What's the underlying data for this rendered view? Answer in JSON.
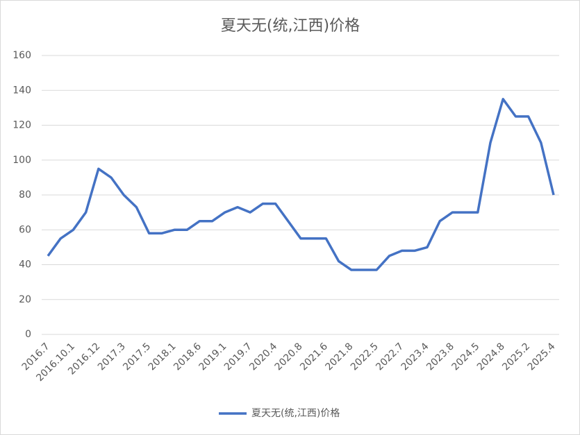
{
  "chart_data": {
    "type": "line",
    "title": "夏天无(统,江西)价格",
    "categories": [
      "2016.7",
      null,
      "2016.10.1",
      null,
      "2016.12",
      null,
      "2017.3",
      null,
      "2017.5",
      null,
      "2018.1",
      null,
      "2018.6",
      null,
      "2019.1",
      null,
      "2019.7",
      null,
      "2020.4",
      null,
      "2020.8",
      null,
      "2021.6",
      null,
      "2021.8",
      null,
      "2022.5",
      null,
      "2022.7",
      null,
      "2023.4",
      null,
      "2023.8",
      null,
      "2024.5",
      null,
      "2024.8",
      null,
      "2025.2",
      null,
      "2025.4"
    ],
    "series": [
      {
        "name": "夏天无(统,江西)价格",
        "color": "#4472c4",
        "values": [
          45,
          55,
          60,
          70,
          95,
          90,
          80,
          73,
          58,
          58,
          60,
          60,
          65,
          65,
          70,
          73,
          70,
          75,
          75,
          65,
          55,
          55,
          55,
          42,
          37,
          37,
          37,
          45,
          48,
          48,
          50,
          65,
          70,
          70,
          70,
          110,
          135,
          125,
          125,
          110,
          80
        ]
      }
    ],
    "ylim": [
      0,
      160
    ],
    "yticks": [
      0,
      20,
      40,
      60,
      80,
      100,
      120,
      140,
      160
    ],
    "grid": true,
    "legend": "bottom"
  }
}
